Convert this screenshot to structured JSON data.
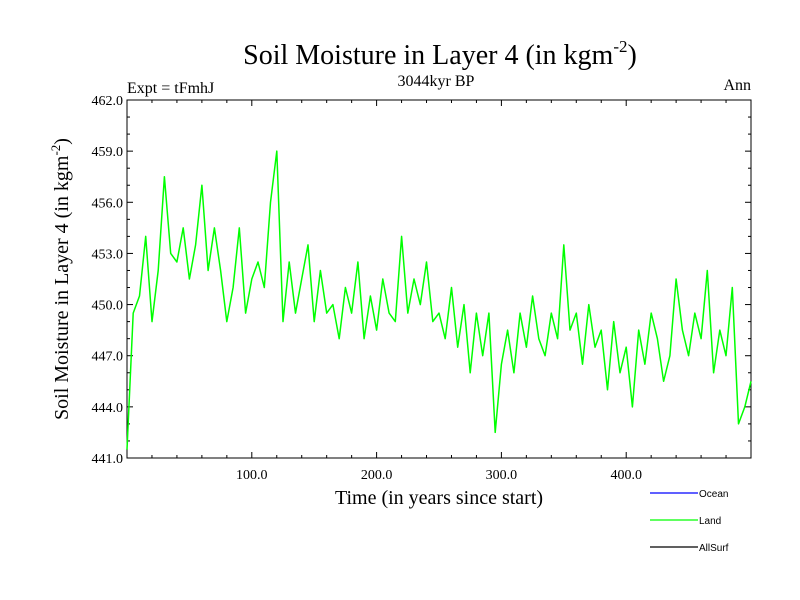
{
  "chart_data": {
    "type": "line",
    "title": "Soil Moisture in Layer 4 (in kgm",
    "title_sup": "-2",
    "title_close": ")",
    "subtitle": "3044kyr BP",
    "left_label": "Expt = tFmhJ",
    "right_label": "Ann",
    "xlabel": "Time (in years since start)",
    "ylabel": "Soil Moisture in Layer 4 (in kgm",
    "ylabel_sup": "-2",
    "ylabel_close": ")",
    "xlim": [
      0,
      500
    ],
    "ylim": [
      441.0,
      462.0
    ],
    "x_ticks": [
      100,
      200,
      300,
      400
    ],
    "x_tick_labels": [
      "100.0",
      "200.0",
      "300.0",
      "400.0"
    ],
    "y_ticks": [
      441,
      444,
      447,
      450,
      453,
      456,
      459,
      462
    ],
    "y_tick_labels": [
      "441.0",
      "444.0",
      "447.0",
      "450.0",
      "453.0",
      "456.0",
      "459.0",
      "462.0"
    ],
    "legend": [
      {
        "name": "Ocean",
        "color": "#0000ff"
      },
      {
        "name": "Land",
        "color": "#00ff00"
      },
      {
        "name": "AllSurf",
        "color": "#000000"
      }
    ],
    "series": [
      {
        "name": "Land",
        "color": "#00ff00",
        "x": [
          0,
          5,
          10,
          15,
          20,
          25,
          30,
          35,
          40,
          45,
          50,
          55,
          60,
          65,
          70,
          75,
          80,
          85,
          90,
          95,
          100,
          105,
          110,
          115,
          120,
          125,
          130,
          135,
          140,
          145,
          150,
          155,
          160,
          165,
          170,
          175,
          180,
          185,
          190,
          195,
          200,
          205,
          210,
          215,
          220,
          225,
          230,
          235,
          240,
          245,
          250,
          255,
          260,
          265,
          270,
          275,
          280,
          285,
          290,
          295,
          300,
          305,
          310,
          315,
          320,
          325,
          330,
          335,
          340,
          345,
          350,
          355,
          360,
          365,
          370,
          375,
          380,
          385,
          390,
          395,
          400,
          405,
          410,
          415,
          420,
          425,
          430,
          435,
          440,
          445,
          450,
          455,
          460,
          465,
          470,
          475,
          480,
          485,
          490,
          495,
          500
        ],
        "values": [
          441.5,
          449.5,
          450.5,
          454.0,
          449.0,
          452.0,
          457.5,
          453.0,
          452.5,
          454.5,
          451.5,
          453.5,
          457.0,
          452.0,
          454.5,
          452.0,
          449.0,
          451.0,
          454.5,
          449.5,
          451.5,
          452.5,
          451.0,
          456.0,
          459.0,
          449.0,
          452.5,
          449.5,
          451.5,
          453.5,
          449.0,
          452.0,
          449.5,
          450.0,
          448.0,
          451.0,
          449.5,
          452.5,
          448.0,
          450.5,
          448.5,
          451.5,
          449.5,
          449.0,
          454.0,
          449.5,
          451.5,
          450.0,
          452.5,
          449.0,
          449.5,
          448.0,
          451.0,
          447.5,
          450.0,
          446.0,
          449.5,
          447.0,
          449.5,
          442.5,
          446.5,
          448.5,
          446.0,
          449.5,
          447.5,
          450.5,
          448.0,
          447.0,
          449.5,
          448.0,
          453.5,
          448.5,
          449.5,
          446.5,
          450.0,
          447.5,
          448.5,
          445.0,
          449.0,
          446.0,
          447.5,
          444.0,
          448.5,
          446.5,
          449.5,
          448.0,
          445.5,
          447.0,
          451.5,
          448.5,
          447.0,
          449.5,
          448.0,
          452.0,
          446.0,
          448.5,
          447.0,
          451.0,
          443.0,
          444.0,
          445.5
        ]
      }
    ]
  }
}
